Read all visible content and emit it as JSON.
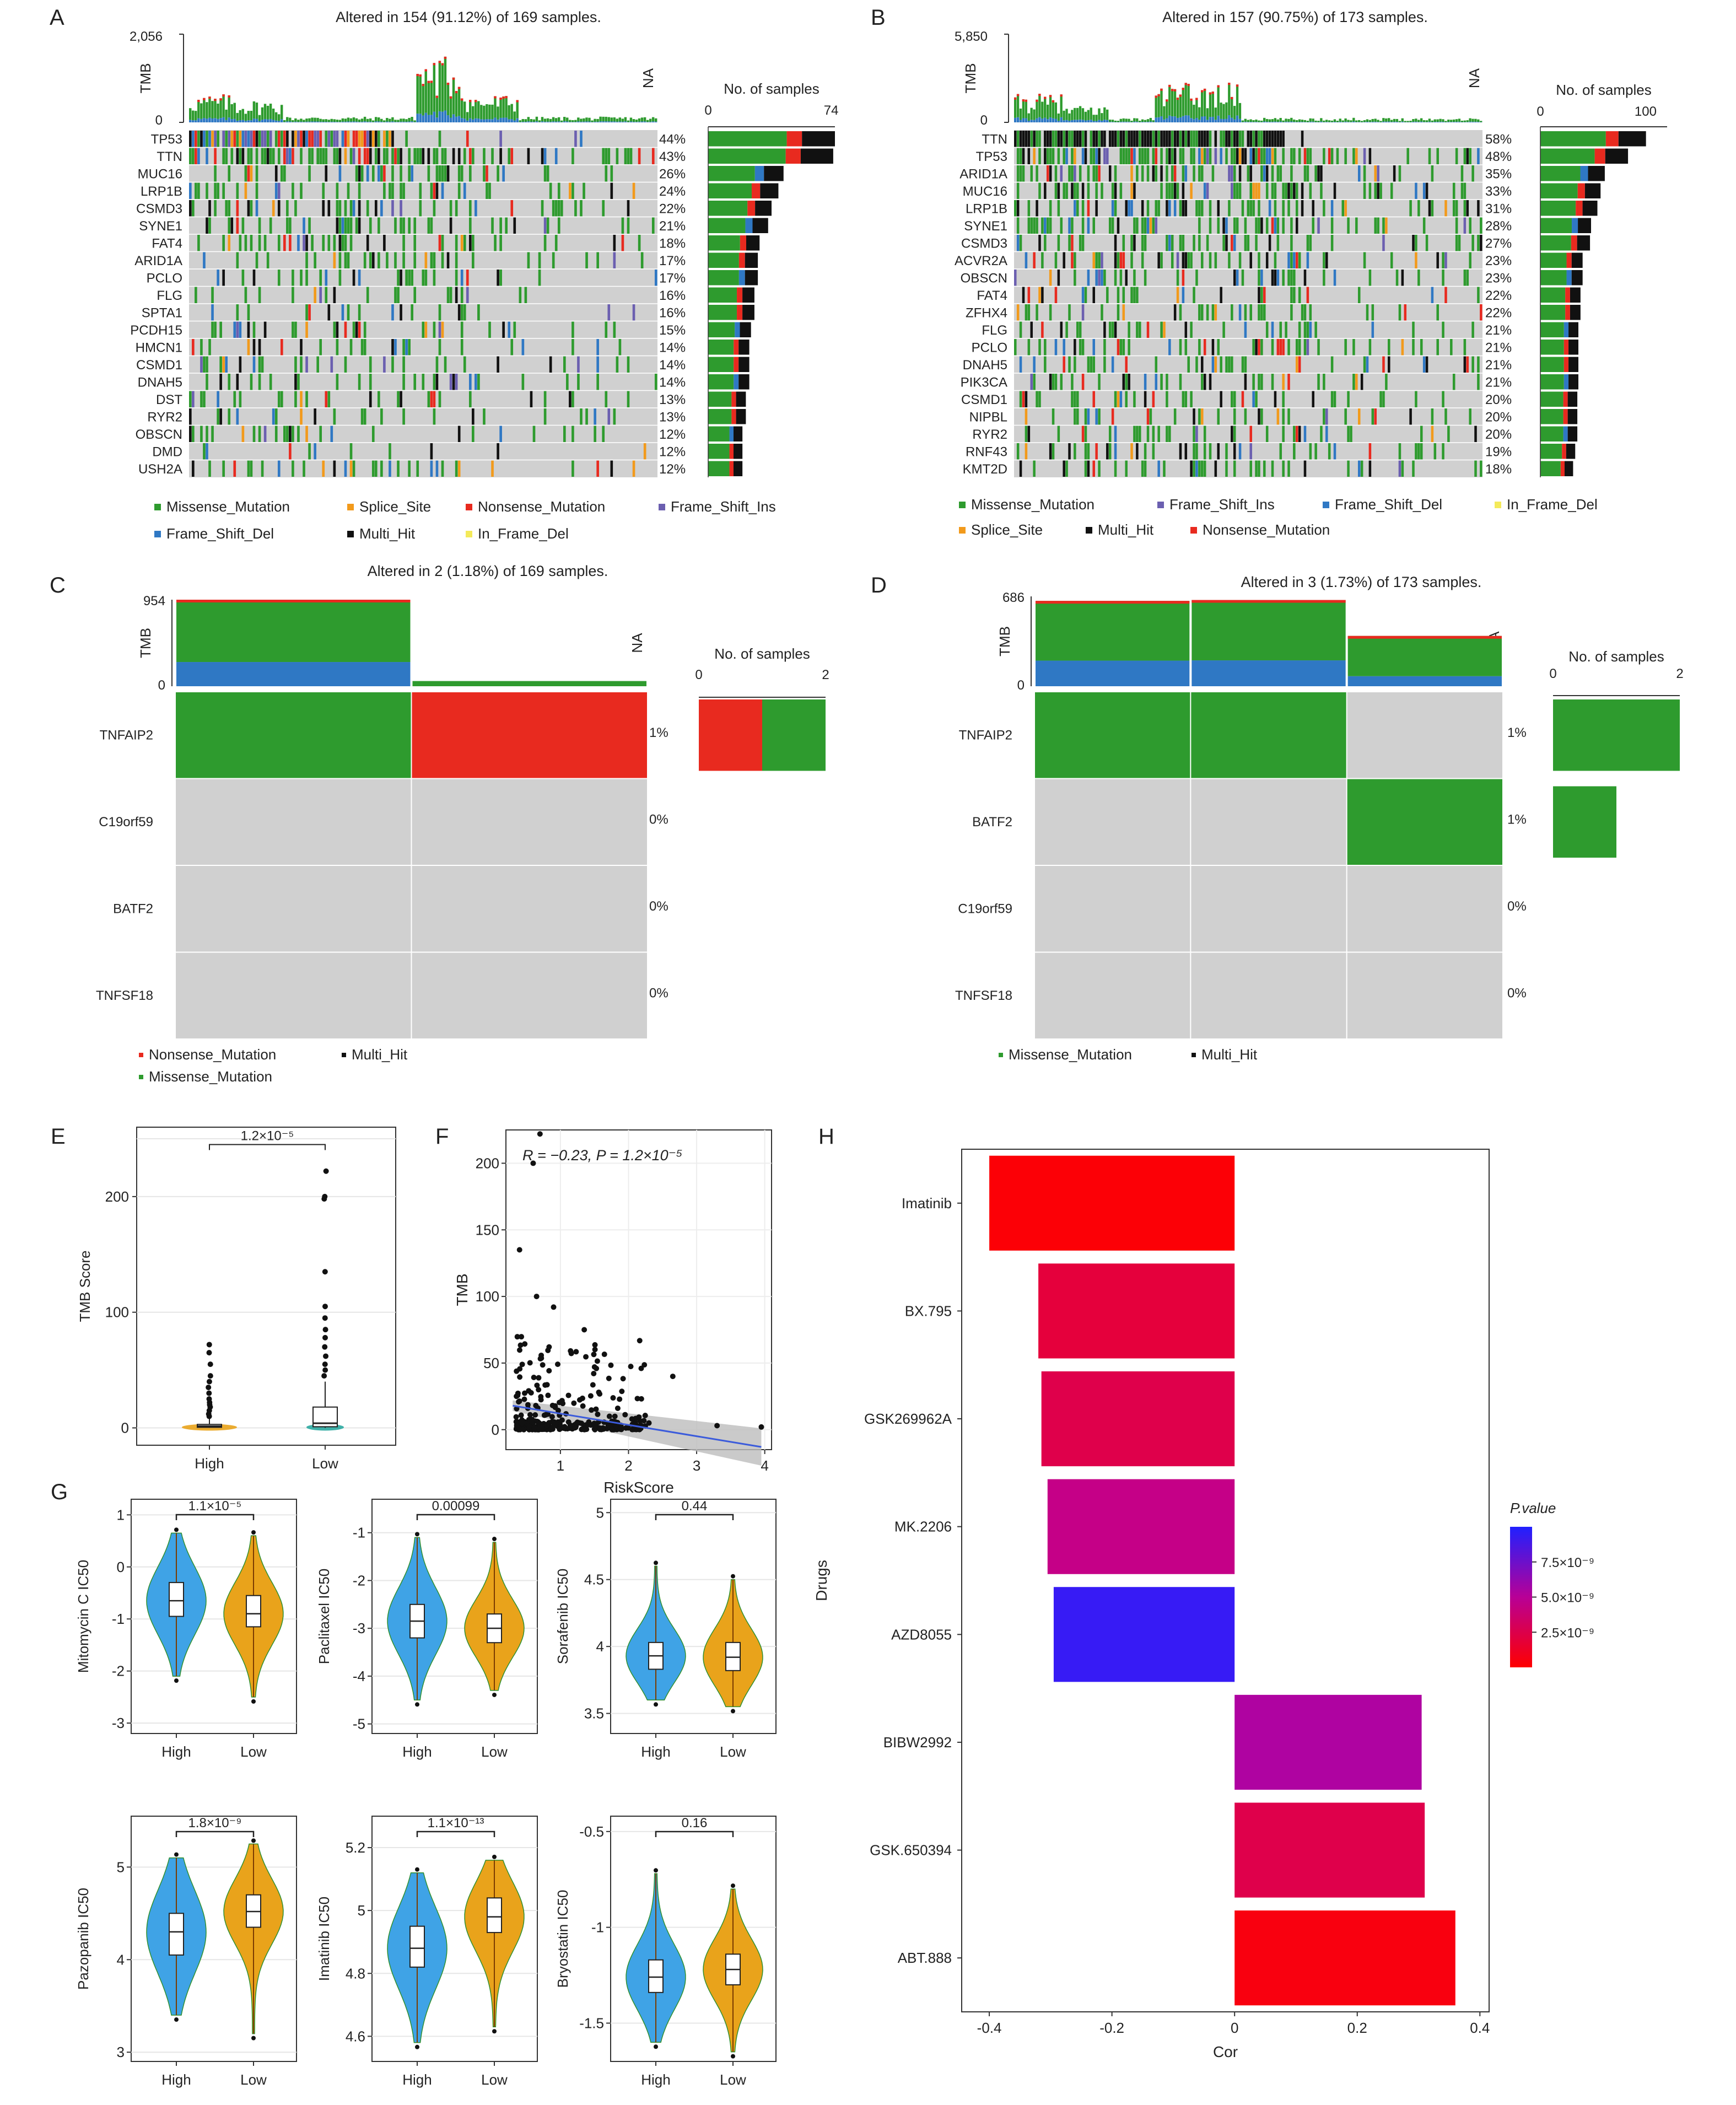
{
  "panel_letters": [
    "A",
    "B",
    "C",
    "D",
    "E",
    "F",
    "G",
    "H"
  ],
  "colors": {
    "Missense_Mutation": "#2e9b2e",
    "Splice_Site": "#f29a1b",
    "Nonsense_Mutation": "#e82a1f",
    "Frame_Shift_Ins": "#6b5fb0",
    "Frame_Shift_Del": "#2f78c4",
    "Multi_Hit": "#111111",
    "In_Frame_Del": "#f4ea5a",
    "empty": "#d0d0d0",
    "high_violin": "#3fa3e6",
    "low_violin": "#e9a31b"
  },
  "chart_data": [
    {
      "id": "A",
      "type": "oncoplot",
      "title": "Altered in 154 (91.12%) of 169 samples.",
      "tmb_label": "TMB",
      "tmb_max": "2,056",
      "tmb_zero": "0",
      "na_label": "NA",
      "count_title": "No. of samples",
      "count_ticks": [
        "0",
        "74"
      ],
      "count_max": 74,
      "genes": [
        "TP53",
        "TTN",
        "MUC16",
        "LRP1B",
        "CSMD3",
        "SYNE1",
        "FAT4",
        "ARID1A",
        "PCLO",
        "FLG",
        "SPTA1",
        "PCDH15",
        "HMCN1",
        "CSMD1",
        "DNAH5",
        "DST",
        "RYR2",
        "OBSCN",
        "DMD",
        "USH2A"
      ],
      "pcts": [
        "44%",
        "43%",
        "26%",
        "24%",
        "22%",
        "21%",
        "18%",
        "17%",
        "17%",
        "16%",
        "16%",
        "15%",
        "14%",
        "14%",
        "14%",
        "13%",
        "13%",
        "12%",
        "12%",
        "12%"
      ],
      "counts": [
        74,
        73,
        44,
        41,
        37,
        35,
        30,
        29,
        29,
        27,
        27,
        25,
        24,
        24,
        24,
        22,
        22,
        20,
        20,
        20
      ],
      "legend": [
        {
          "key": "Missense_Mutation",
          "label": "Missense_Mutation"
        },
        {
          "key": "Splice_Site",
          "label": "Splice_Site"
        },
        {
          "key": "Nonsense_Mutation",
          "label": "Nonsense_Mutation"
        },
        {
          "key": "Frame_Shift_Ins",
          "label": "Frame_Shift_Ins"
        },
        {
          "key": "Frame_Shift_Del",
          "label": "Frame_Shift_Del"
        },
        {
          "key": "Multi_Hit",
          "label": "Multi_Hit"
        },
        {
          "key": "In_Frame_Del",
          "label": "In_Frame_Del"
        }
      ]
    },
    {
      "id": "B",
      "type": "oncoplot",
      "title": "Altered in 157 (90.75%) of 173 samples.",
      "tmb_label": "TMB",
      "tmb_max": "5,850",
      "tmb_zero": "0",
      "na_label": "NA",
      "count_title": "No. of samples",
      "count_ticks": [
        "0",
        "100"
      ],
      "count_max": 120,
      "genes": [
        "TTN",
        "TP53",
        "ARID1A",
        "MUC16",
        "LRP1B",
        "SYNE1",
        "CSMD3",
        "ACVR2A",
        "OBSCN",
        "FAT4",
        "ZFHX4",
        "FLG",
        "PCLO",
        "DNAH5",
        "PIK3CA",
        "CSMD1",
        "NIPBL",
        "RYR2",
        "RNF43",
        "KMT2D"
      ],
      "pcts": [
        "58%",
        "48%",
        "35%",
        "33%",
        "31%",
        "28%",
        "27%",
        "23%",
        "23%",
        "22%",
        "22%",
        "21%",
        "21%",
        "21%",
        "21%",
        "20%",
        "20%",
        "20%",
        "19%",
        "18%"
      ],
      "counts": [
        100,
        83,
        61,
        57,
        54,
        48,
        47,
        40,
        40,
        38,
        38,
        36,
        36,
        36,
        36,
        35,
        35,
        35,
        33,
        31
      ],
      "legend": [
        {
          "key": "Missense_Mutation",
          "label": "Missense_Mutation"
        },
        {
          "key": "Frame_Shift_Ins",
          "label": "Frame_Shift_Ins"
        },
        {
          "key": "Frame_Shift_Del",
          "label": "Frame_Shift_Del"
        },
        {
          "key": "In_Frame_Del",
          "label": "In_Frame_Del"
        },
        {
          "key": "Splice_Site",
          "label": "Splice_Site"
        },
        {
          "key": "Multi_Hit",
          "label": "Multi_Hit"
        },
        {
          "key": "Nonsense_Mutation",
          "label": "Nonsense_Mutation"
        }
      ]
    },
    {
      "id": "C",
      "type": "oncoplot",
      "title": "Altered in 2 (1.18%) of 169 samples.",
      "tmb_label": "TMB",
      "tmb_max": "954",
      "tmb_zero": "0",
      "na_label": "NA",
      "count_title": "No. of samples",
      "count_ticks": [
        "0",
        "2"
      ],
      "count_max": 2,
      "genes": [
        "TNFAIP2",
        "C19orf59",
        "BATF2",
        "TNFSF18"
      ],
      "pcts": [
        "1%",
        "0%",
        "0%",
        "0%"
      ],
      "counts": [
        2,
        0,
        0,
        0
      ],
      "legend": [
        {
          "key": "Nonsense_Mutation",
          "label": "Nonsense_Mutation"
        },
        {
          "key": "Multi_Hit",
          "label": "Multi_Hit"
        },
        {
          "key": "Missense_Mutation",
          "label": "Missense_Mutation"
        }
      ]
    },
    {
      "id": "D",
      "type": "oncoplot",
      "title": "Altered in 3 (1.73%) of 173 samples.",
      "tmb_label": "TMB",
      "tmb_max": "686",
      "tmb_zero": "0",
      "na_label": "NA",
      "count_title": "No. of samples",
      "count_ticks": [
        "0",
        "2"
      ],
      "count_max": 2,
      "genes": [
        "TNFAIP2",
        "BATF2",
        "C19orf59",
        "TNFSF18"
      ],
      "pcts": [
        "1%",
        "1%",
        "0%",
        "0%"
      ],
      "counts": [
        2,
        1,
        0,
        0
      ],
      "legend": [
        {
          "key": "Missense_Mutation",
          "label": "Missense_Mutation"
        },
        {
          "key": "Multi_Hit",
          "label": "Multi_Hit"
        }
      ]
    },
    {
      "id": "E",
      "type": "box",
      "ylabel": "TMB Score",
      "yticks": [
        0,
        100,
        200
      ],
      "ylim": [
        -15,
        260
      ],
      "categories": [
        "High",
        "Low"
      ],
      "pvalue": "1.2×10⁻⁵",
      "stats": [
        {
          "group": "High",
          "q1": 0.5,
          "median": 1.5,
          "q3": 3,
          "whisker_low": 0,
          "whisker_high": 8,
          "outliers": [
            10,
            12,
            15,
            18,
            20,
            22,
            25,
            30,
            35,
            40,
            45,
            55,
            65,
            72
          ]
        },
        {
          "group": "Low",
          "q1": 1,
          "median": 4,
          "q3": 18,
          "whisker_low": 0,
          "whisker_high": 40,
          "outliers": [
            45,
            50,
            55,
            62,
            70,
            78,
            85,
            95,
            105,
            135,
            198,
            200,
            222
          ]
        }
      ]
    },
    {
      "id": "F",
      "type": "scatter",
      "xlabel": "RiskScore",
      "ylabel": "TMB",
      "annotation_r": "R = −0.23, P = 1.2×10⁻⁵",
      "xticks": [
        1,
        2,
        3,
        4
      ],
      "yticks": [
        0,
        50,
        100,
        150,
        200
      ],
      "xlim": [
        0.2,
        4.1
      ],
      "ylim": [
        -15,
        225
      ],
      "fit": {
        "x0": 0.3,
        "y0": 18,
        "x1": 3.95,
        "y1": -13
      }
    },
    {
      "id": "G",
      "type": "violin",
      "panels": [
        {
          "ylabel": "Mitomycin C IC50",
          "yticks": [
            1,
            0,
            -1,
            -2,
            -3
          ],
          "ylim": [
            -3.2,
            1.3
          ],
          "pvalue": "1.1×10⁻⁵",
          "high": {
            "median": -0.65,
            "q1": -0.95,
            "q3": -0.3,
            "min": -2.1,
            "max": 0.65
          },
          "low": {
            "median": -0.9,
            "q1": -1.15,
            "q3": -0.55,
            "min": -2.5,
            "max": 0.6
          }
        },
        {
          "ylabel": "Paclitaxel IC50",
          "yticks": [
            -1,
            -2,
            -3,
            -4,
            -5
          ],
          "ylim": [
            -5.2,
            -0.3
          ],
          "pvalue": "0.00099",
          "high": {
            "median": -2.85,
            "q1": -3.2,
            "q3": -2.5,
            "min": -4.5,
            "max": -1.1
          },
          "low": {
            "median": -3.0,
            "q1": -3.3,
            "q3": -2.7,
            "min": -4.3,
            "max": -1.2
          }
        },
        {
          "ylabel": "Sorafenib IC50",
          "yticks": [
            5.0,
            4.5,
            4.0,
            3.5
          ],
          "ylim": [
            3.35,
            5.1
          ],
          "pvalue": "0.44",
          "high": {
            "median": 3.93,
            "q1": 3.83,
            "q3": 4.03,
            "min": 3.6,
            "max": 4.6
          },
          "low": {
            "median": 3.92,
            "q1": 3.82,
            "q3": 4.03,
            "min": 3.55,
            "max": 4.5
          }
        },
        {
          "ylabel": "Pazopanib IC50",
          "yticks": [
            5,
            4,
            3
          ],
          "ylim": [
            2.9,
            5.55
          ],
          "pvalue": "1.8×10⁻⁹",
          "high": {
            "median": 4.3,
            "q1": 4.05,
            "q3": 4.5,
            "min": 3.4,
            "max": 5.1
          },
          "low": {
            "median": 4.52,
            "q1": 4.35,
            "q3": 4.7,
            "min": 3.2,
            "max": 5.25
          }
        },
        {
          "ylabel": "Imatinib IC50",
          "yticks": [
            5.2,
            5.0,
            4.8,
            4.6
          ],
          "ylim": [
            4.52,
            5.3
          ],
          "pvalue": "1.1×10⁻¹³",
          "high": {
            "median": 4.88,
            "q1": 4.82,
            "q3": 4.95,
            "min": 4.58,
            "max": 5.12
          },
          "low": {
            "median": 4.98,
            "q1": 4.93,
            "q3": 5.04,
            "min": 4.63,
            "max": 5.16
          }
        },
        {
          "ylabel": "Bryostatin IC50",
          "yticks": [
            -0.5,
            -1.0,
            -1.5
          ],
          "ylim": [
            -1.7,
            -0.42
          ],
          "pvalue": "0.16",
          "high": {
            "median": -1.26,
            "q1": -1.34,
            "q3": -1.17,
            "min": -1.6,
            "max": -0.72
          },
          "low": {
            "median": -1.22,
            "q1": -1.3,
            "q3": -1.14,
            "min": -1.65,
            "max": -0.8
          }
        }
      ],
      "categories": [
        "High",
        "Low"
      ]
    },
    {
      "id": "H",
      "type": "bar",
      "orientation": "horizontal",
      "ylabel": "Drugs",
      "xlabel": "Cor",
      "categories": [
        "Imatinib",
        "BX.795",
        "GSK269962A",
        "MK.2206",
        "AZD8055",
        "BIBW2992",
        "GSK.650394",
        "ABT.888"
      ],
      "values": [
        -0.4,
        -0.32,
        -0.315,
        -0.305,
        -0.295,
        0.305,
        0.31,
        0.36
      ],
      "pvalues": [
        2e-10,
        2e-09,
        2.5e-09,
        4.5e-09,
        9.5e-09,
        5.5e-09,
        2.5e-09,
        5e-10
      ],
      "xticks": [
        "-0.4",
        "-0.2",
        "0",
        "0.2",
        "0.4"
      ],
      "xtick_vals": [
        -0.4,
        -0.2,
        0,
        0.2,
        0.4
      ],
      "xlim": [
        -0.445,
        0.415
      ],
      "legend_title": "P.value",
      "legend_ticks": [
        "7.5×10⁻⁹",
        "5.0×10⁻⁹",
        "2.5×10⁻⁹"
      ],
      "legend_tick_vals": [
        7.5e-09,
        5e-09,
        2.5e-09
      ],
      "legend_range": [
        0,
        1e-08
      ]
    }
  ]
}
